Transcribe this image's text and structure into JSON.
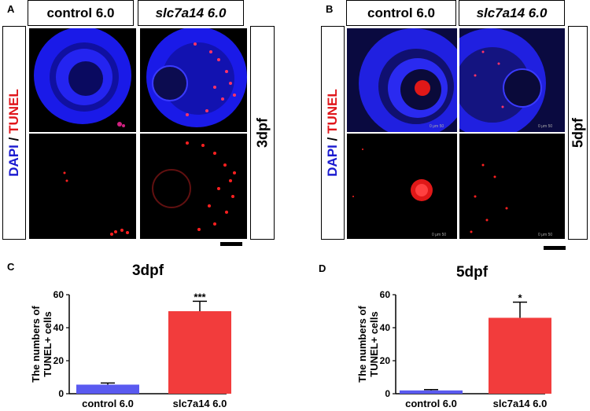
{
  "panels": {
    "A": {
      "label": "A",
      "col_headers": [
        "control 6.0",
        "slc7a14 6.0"
      ],
      "row_label": {
        "dapi": "DAPI",
        "sep": " / ",
        "tunel": "TUNEL"
      },
      "stage_label": "3dpf"
    },
    "B": {
      "label": "B",
      "col_headers": [
        "control 6.0",
        "slc7a14 6.0"
      ],
      "row_label": {
        "dapi": "DAPI",
        "sep": " / ",
        "tunel": "TUNEL"
      },
      "stage_label": "5dpf",
      "scale_text": "0 μm 50"
    },
    "C": {
      "label": "C"
    },
    "D": {
      "label": "D"
    }
  },
  "colors": {
    "dapi_blue": "#1b1bd0",
    "tunel_red": "#e0161b",
    "bar_control": "#5a5af0",
    "bar_mutant": "#f23c3c"
  },
  "chart_data": [
    {
      "type": "bar",
      "title": "3dpf",
      "ylabel": "The numbers of TUNEL+ cells",
      "categories": [
        "control 6.0",
        "slc7a14 6.0"
      ],
      "values": [
        5.5,
        50
      ],
      "errors": [
        1.0,
        6.0
      ],
      "significance": [
        "",
        "***"
      ],
      "ylim": [
        0,
        60
      ],
      "yticks": [
        0,
        20,
        40,
        60
      ]
    },
    {
      "type": "bar",
      "title": "5dpf",
      "ylabel": "The numbers of TUNEL+ cells",
      "categories": [
        "control 6.0",
        "slc7a14 6.0"
      ],
      "values": [
        2,
        46
      ],
      "errors": [
        0.5,
        9.5
      ],
      "significance": [
        "",
        "*"
      ],
      "ylim": [
        0,
        60
      ],
      "yticks": [
        0,
        20,
        40,
        60
      ]
    }
  ]
}
